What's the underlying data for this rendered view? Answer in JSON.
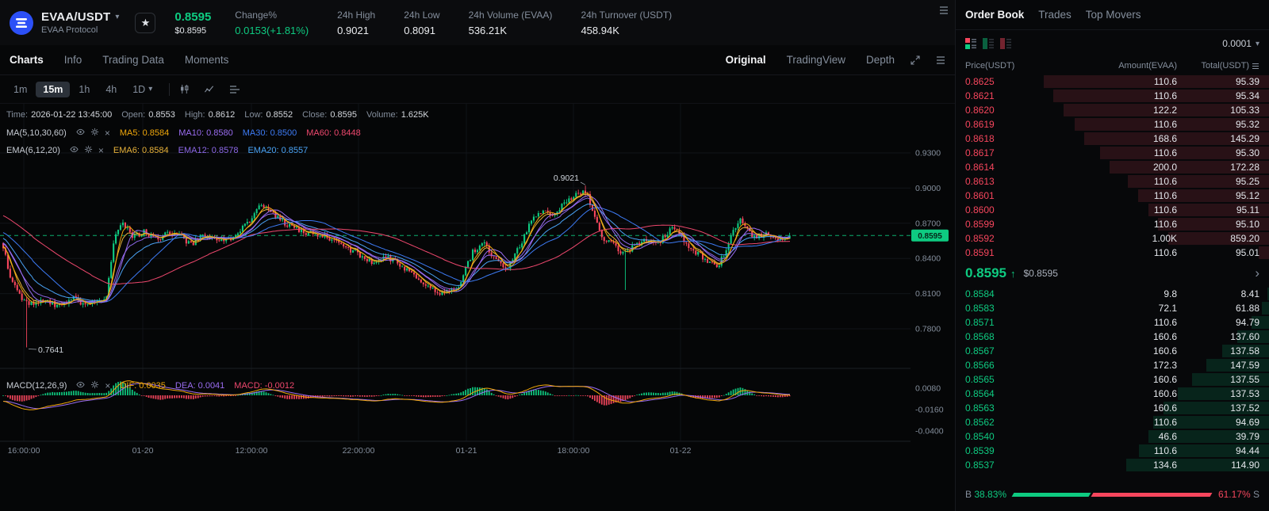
{
  "icons": {
    "caret_down": "▾",
    "star": "★",
    "up_arrow": "↑",
    "chevron_right": "›",
    "close": "×"
  },
  "colors": {
    "up": "#0ecb81",
    "down": "#f6465d"
  },
  "header": {
    "pair": "EVAA/USDT",
    "subtitle": "EVAA Protocol",
    "last_price": "0.8595",
    "last_price_usd": "$0.8595",
    "stats": [
      {
        "label": "Change%",
        "value": "0.0153(+1.81%)",
        "accent": "green"
      },
      {
        "label": "24h High",
        "value": "0.9021"
      },
      {
        "label": "24h Low",
        "value": "0.8091"
      },
      {
        "label": "24h Volume (EVAA)",
        "value": "536.21K"
      },
      {
        "label": "24h Turnover (USDT)",
        "value": "458.94K"
      }
    ]
  },
  "nav": {
    "tabs": [
      {
        "label": "Charts",
        "active": true
      },
      {
        "label": "Info"
      },
      {
        "label": "Trading Data"
      },
      {
        "label": "Moments"
      }
    ],
    "view_tabs": [
      {
        "label": "Original",
        "active": true
      },
      {
        "label": "TradingView"
      },
      {
        "label": "Depth"
      }
    ]
  },
  "toolbar": {
    "intervals": [
      {
        "label": "1m"
      },
      {
        "label": "15m",
        "active": true
      },
      {
        "label": "1h"
      },
      {
        "label": "4h"
      },
      {
        "label": "1D",
        "caret": true
      }
    ]
  },
  "legend": {
    "time_label": "Time:",
    "time": "2026-01-22 13:45:00",
    "open_label": "Open:",
    "open": "0.8553",
    "high_label": "High:",
    "high": "0.8612",
    "low_label": "Low:",
    "low": "0.8552",
    "close_label": "Close:",
    "close": "0.8595",
    "volume_label": "Volume:",
    "volume": "1.625K",
    "ma_group": "MA(5,10,30,60)",
    "ma_items": [
      {
        "label": "MA5: 0.8584",
        "color": "#f0a70a"
      },
      {
        "label": "MA10: 0.8580",
        "color": "#9b6df2"
      },
      {
        "label": "MA30: 0.8500",
        "color": "#3d7bf5"
      },
      {
        "label": "MA60: 0.8448",
        "color": "#ef486e"
      }
    ],
    "ema_group": "EMA(6,12,20)",
    "ema_items": [
      {
        "label": "EMA6: 0.8584",
        "color": "#e8b23a"
      },
      {
        "label": "EMA12: 0.8578",
        "color": "#8d68e8"
      },
      {
        "label": "EMA20: 0.8557",
        "color": "#4aa3f5"
      }
    ],
    "macd_group": "MACD(12,26,9)",
    "macd_items": [
      {
        "label": "DIF: 0.0035",
        "color": "#f0a70a"
      },
      {
        "label": "DEA: 0.0041",
        "color": "#9b6df2"
      },
      {
        "label": "MACD: -0.0012",
        "color": "#ef486e"
      }
    ]
  },
  "chart_axes": {
    "y_ticks": [
      {
        "label": "0.9300",
        "price": 0.93
      },
      {
        "label": "0.9000",
        "price": 0.9
      },
      {
        "label": "0.8700",
        "price": 0.87
      },
      {
        "label": "0.8400",
        "price": 0.84
      },
      {
        "label": "0.8100",
        "price": 0.81
      },
      {
        "label": "0.7800",
        "price": 0.78
      }
    ],
    "macd_ticks": [
      {
        "label": "0.0080",
        "value": 0.008
      },
      {
        "label": "-0.0160",
        "value": -0.016
      },
      {
        "label": "-0.0400",
        "value": -0.04
      }
    ],
    "x_ticks": [
      "16:00:00",
      "01-20",
      "12:00:00",
      "22:00:00",
      "01-21",
      "18:00:00",
      "01-22"
    ],
    "price_line": {
      "label": "0.8595",
      "price": 0.8595
    },
    "annotations": {
      "high": "0.9021",
      "low": "0.7641"
    }
  },
  "chart_data": {
    "type": "candlestick",
    "symbol": "EVAA/USDT",
    "interval": "15m",
    "last": {
      "time": "2026-01-22 13:45:00",
      "open": 0.8553,
      "high": 0.8612,
      "low": 0.8552,
      "close": 0.8595,
      "volume": "1.625K"
    },
    "y_range": [
      0.78,
      0.93
    ],
    "session_high": 0.9021,
    "session_low": 0.7641,
    "overlays": {
      "MA5": 0.8584,
      "MA10": 0.858,
      "MA30": 0.85,
      "MA60": 0.8448,
      "EMA6": 0.8584,
      "EMA12": 0.8578,
      "EMA20": 0.8557
    },
    "macd": {
      "DIF": 0.0035,
      "DEA": 0.0041,
      "MACD": -0.0012
    },
    "price_path_anchors": [
      [
        0,
        0.849
      ],
      [
        0.012,
        0.818
      ],
      [
        0.03,
        0.801
      ],
      [
        0.05,
        0.805
      ],
      [
        0.07,
        0.799
      ],
      [
        0.09,
        0.806
      ],
      [
        0.105,
        0.8
      ],
      [
        0.12,
        0.803
      ],
      [
        0.132,
        0.809
      ],
      [
        0.142,
        0.861
      ],
      [
        0.152,
        0.869
      ],
      [
        0.165,
        0.858
      ],
      [
        0.18,
        0.863
      ],
      [
        0.195,
        0.856
      ],
      [
        0.21,
        0.863
      ],
      [
        0.225,
        0.859
      ],
      [
        0.24,
        0.851
      ],
      [
        0.255,
        0.861
      ],
      [
        0.27,
        0.857
      ],
      [
        0.285,
        0.855
      ],
      [
        0.3,
        0.863
      ],
      [
        0.315,
        0.874
      ],
      [
        0.328,
        0.887
      ],
      [
        0.34,
        0.879
      ],
      [
        0.355,
        0.871
      ],
      [
        0.37,
        0.866
      ],
      [
        0.39,
        0.861
      ],
      [
        0.41,
        0.858
      ],
      [
        0.43,
        0.851
      ],
      [
        0.45,
        0.845
      ],
      [
        0.468,
        0.836
      ],
      [
        0.487,
        0.842
      ],
      [
        0.505,
        0.834
      ],
      [
        0.525,
        0.823
      ],
      [
        0.545,
        0.815
      ],
      [
        0.562,
        0.809
      ],
      [
        0.578,
        0.815
      ],
      [
        0.597,
        0.846
      ],
      [
        0.612,
        0.852
      ],
      [
        0.628,
        0.838
      ],
      [
        0.642,
        0.831
      ],
      [
        0.655,
        0.849
      ],
      [
        0.67,
        0.869
      ],
      [
        0.683,
        0.881
      ],
      [
        0.698,
        0.875
      ],
      [
        0.713,
        0.887
      ],
      [
        0.728,
        0.894
      ],
      [
        0.74,
        0.898
      ],
      [
        0.75,
        0.882
      ],
      [
        0.762,
        0.858
      ],
      [
        0.775,
        0.852
      ],
      [
        0.79,
        0.843
      ],
      [
        0.802,
        0.851
      ],
      [
        0.815,
        0.856
      ],
      [
        0.828,
        0.851
      ],
      [
        0.84,
        0.858
      ],
      [
        0.852,
        0.866
      ],
      [
        0.864,
        0.857
      ],
      [
        0.876,
        0.847
      ],
      [
        0.888,
        0.842
      ],
      [
        0.898,
        0.835
      ],
      [
        0.908,
        0.833
      ],
      [
        0.918,
        0.846
      ],
      [
        0.928,
        0.863
      ],
      [
        0.937,
        0.875
      ],
      [
        0.947,
        0.864
      ],
      [
        0.957,
        0.857
      ],
      [
        0.968,
        0.862
      ],
      [
        0.978,
        0.856
      ],
      [
        1,
        0.8595
      ]
    ]
  },
  "orderbook": {
    "tabs": [
      {
        "label": "Order Book",
        "active": true
      },
      {
        "label": "Trades"
      },
      {
        "label": "Top Movers"
      }
    ],
    "precision": "0.0001",
    "columns": [
      "Price(USDT)",
      "Amount(EVAA)",
      "Total(USDT)"
    ],
    "asks": [
      [
        "0.8625",
        "110.6",
        "95.39"
      ],
      [
        "0.8621",
        "110.6",
        "95.34"
      ],
      [
        "0.8620",
        "122.2",
        "105.33"
      ],
      [
        "0.8619",
        "110.6",
        "95.32"
      ],
      [
        "0.8618",
        "168.6",
        "145.29"
      ],
      [
        "0.8617",
        "110.6",
        "95.30"
      ],
      [
        "0.8614",
        "200.0",
        "172.28"
      ],
      [
        "0.8613",
        "110.6",
        "95.25"
      ],
      [
        "0.8601",
        "110.6",
        "95.12"
      ],
      [
        "0.8600",
        "110.6",
        "95.11"
      ],
      [
        "0.8599",
        "110.6",
        "95.10"
      ],
      [
        "0.8592",
        "1.00K",
        "859.20"
      ],
      [
        "0.8591",
        "110.6",
        "95.01"
      ]
    ],
    "mid": {
      "price": "0.8595",
      "direction": "up",
      "usd": "$0.8595"
    },
    "bids": [
      [
        "0.8584",
        "9.8",
        "8.41"
      ],
      [
        "0.8583",
        "72.1",
        "61.88"
      ],
      [
        "0.8571",
        "110.6",
        "94.79"
      ],
      [
        "0.8568",
        "160.6",
        "137.60"
      ],
      [
        "0.8567",
        "160.6",
        "137.58"
      ],
      [
        "0.8566",
        "172.3",
        "147.59"
      ],
      [
        "0.8565",
        "160.6",
        "137.55"
      ],
      [
        "0.8564",
        "160.6",
        "137.53"
      ],
      [
        "0.8563",
        "160.6",
        "137.52"
      ],
      [
        "0.8562",
        "110.6",
        "94.69"
      ],
      [
        "0.8540",
        "46.6",
        "39.79"
      ],
      [
        "0.8539",
        "110.6",
        "94.44"
      ],
      [
        "0.8537",
        "134.6",
        "114.90"
      ]
    ],
    "ratio": {
      "buy_label": "B",
      "buy": "38.83%",
      "sell": "61.17%",
      "sell_label": "S",
      "buy_pct": 38.83
    }
  }
}
